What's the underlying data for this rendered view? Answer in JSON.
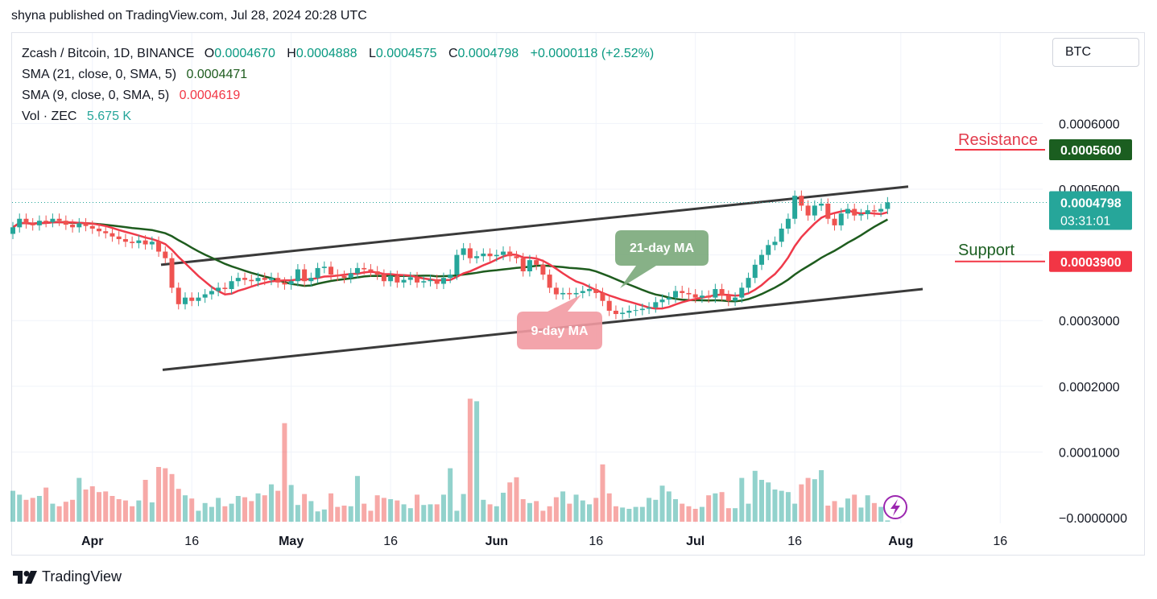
{
  "header": {
    "text": "shyna published on TradingView.com, Jul 28, 2024 20:28 UTC"
  },
  "legend": {
    "symbol": "Zcash / Bitcoin, 1D, BINANCE",
    "o_label": "O",
    "o_value": "0.0004670",
    "h_label": "H",
    "h_value": "0.0004888",
    "l_label": "L",
    "l_value": "0.0004575",
    "c_label": "C",
    "c_value": "0.0004798",
    "change": "+0.0000118 (+2.52%)",
    "sma21_label": "SMA (21, close, 0, SMA, 5)",
    "sma21_value": "0.0004471",
    "sma9_label": "SMA (9, close, 0, SMA, 5)",
    "sma9_value": "0.0004619",
    "vol_label": "Vol · ZEC",
    "vol_value": "5.675 K"
  },
  "currency_button": "BTC",
  "price_axis": {
    "ticks": [
      "0.0006000",
      "0.0005000",
      "0.0003000",
      "0.0002000",
      "0.0001000",
      "−0.0000000"
    ],
    "last_price": "0.0004798",
    "countdown": "03:31:01",
    "resistance_value": "0.0005600",
    "support_value": "0.0003900"
  },
  "time_axis": {
    "ticks": [
      "Apr",
      "16",
      "May",
      "16",
      "Jun",
      "16",
      "Jul",
      "16",
      "Aug",
      "16"
    ]
  },
  "annotations": {
    "resistance": "Resistance",
    "support": "Support",
    "ma21": "21-day MA",
    "ma9": "9-day MA"
  },
  "footer": {
    "brand": "TradingView"
  },
  "colors": {
    "up": "#26a69a",
    "down": "#ef5350",
    "ma21": "#1e5c1e",
    "ma9": "#ef3a4a",
    "resistance": "#1b5e20",
    "support": "#f23645"
  },
  "chart_data": {
    "type": "candlestick",
    "title": "Zcash / Bitcoin, 1D, BINANCE",
    "ylim": [
      0.0,
      0.00064
    ],
    "x_range": [
      "2024-03-20",
      "2024-08-20"
    ],
    "price_ticks": [
      0.0001,
      0.0002,
      0.0003,
      0.0005,
      0.0006
    ],
    "resistance": 0.00056,
    "support": 0.00039,
    "last_close": 0.0004798,
    "closes": [
      0.000442,
      0.000455,
      0.000448,
      0.000445,
      0.000452,
      0.00045,
      0.000455,
      0.000452,
      0.000446,
      0.000442,
      0.000448,
      0.000444,
      0.00044,
      0.000436,
      0.000433,
      0.000428,
      0.000424,
      0.00042,
      0.000418,
      0.000422,
      0.000416,
      0.00042,
      0.000405,
      0.000395,
      0.00035,
      0.000325,
      0.000335,
      0.00033,
      0.000335,
      0.00034,
      0.000345,
      0.00035,
      0.000348,
      0.00036,
      0.000365,
      0.000362,
      0.00036,
      0.000365,
      0.000362,
      0.000365,
      0.000358,
      0.000355,
      0.00036,
      0.000378,
      0.00036,
      0.000365,
      0.00038,
      0.000382,
      0.00037,
      0.000368,
      0.000365,
      0.000372,
      0.00038,
      0.000378,
      0.000375,
      0.00037,
      0.00036,
      0.000368,
      0.000358,
      0.000362,
      0.000366,
      0.000358,
      0.00036,
      0.000362,
      0.000356,
      0.000365,
      0.00037,
      0.0004,
      0.00041,
      0.000395,
      0.000398,
      0.000402,
      0.000398,
      0.0004,
      0.000405,
      0.000398,
      0.000395,
      0.000375,
      0.000392,
      0.000385,
      0.00037,
      0.00035,
      0.00034,
      0.000342,
      0.00034,
      0.000342,
      0.000345,
      0.000348,
      0.000342,
      0.00033,
      0.000315,
      0.00031,
      0.000312,
      0.000315,
      0.000316,
      0.000318,
      0.00032,
      0.000328,
      0.000332,
      0.000335,
      0.000345,
      0.000342,
      0.00034,
      0.000335,
      0.000338,
      0.000335,
      0.000348,
      0.000338,
      0.00033,
      0.000335,
      0.00035,
      0.000365,
      0.000385,
      0.0004,
      0.000415,
      0.00042,
      0.00044,
      0.000455,
      0.00049,
      0.000475,
      0.00046,
      0.000475,
      0.000478,
      0.000455,
      0.000445,
      0.000463,
      0.00047,
      0.00046,
      0.000462,
      0.000468,
      0.000466,
      0.00047,
      0.00048
    ],
    "volumes": [
      48,
      42,
      34,
      37,
      40,
      53,
      28,
      24,
      31,
      34,
      68,
      50,
      55,
      46,
      47,
      40,
      35,
      33,
      24,
      33,
      65,
      30,
      85,
      83,
      74,
      51,
      41,
      36,
      17,
      29,
      23,
      37,
      24,
      28,
      40,
      38,
      32,
      44,
      41,
      58,
      48,
      153,
      57,
      26,
      43,
      32,
      16,
      19,
      44,
      23,
      25,
      24,
      71,
      28,
      17,
      41,
      37,
      35,
      33,
      27,
      21,
      42,
      26,
      27,
      27,
      42,
      83,
      17,
      43,
      191,
      187,
      34,
      27,
      24,
      45,
      61,
      69,
      35,
      29,
      32,
      17,
      24,
      38,
      47,
      28,
      42,
      33,
      27,
      37,
      89,
      44,
      24,
      22,
      20,
      23,
      23,
      37,
      34,
      56,
      47,
      35,
      28,
      24,
      20,
      23,
      41,
      44,
      46,
      21,
      21,
      68,
      28,
      79,
      65,
      61,
      50,
      48,
      46,
      28,
      58,
      68,
      66,
      80,
      25,
      32,
      22,
      36,
      42,
      22,
      41,
      29,
      23,
      2
    ]
  }
}
